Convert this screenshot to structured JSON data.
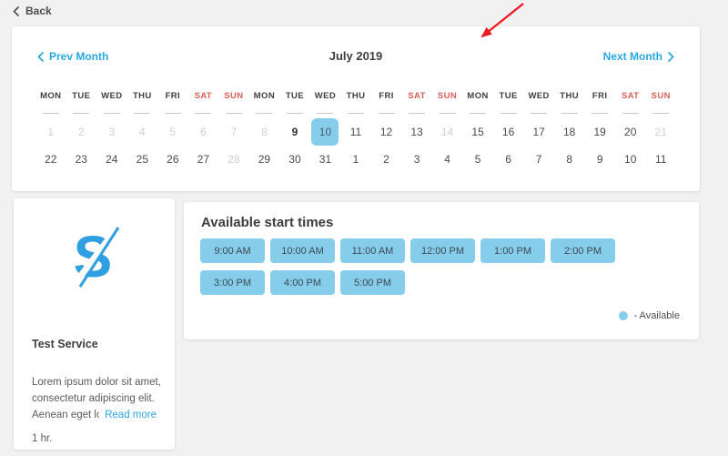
{
  "colors": {
    "accent": "#2ba7e0",
    "slot_blue": "#85cdea",
    "weekend_red": "#d66058",
    "arrow_red": "#ed1c24",
    "logo_blue": "#2e9fe0",
    "page_bg": "#f1f1f2"
  },
  "back": {
    "label": "Back"
  },
  "calendar": {
    "title": "July 2019",
    "prev_label": "Prev Month",
    "next_label": "Next Month",
    "day_headers": [
      {
        "label": "MON",
        "weekend": false
      },
      {
        "label": "TUE",
        "weekend": false
      },
      {
        "label": "WED",
        "weekend": false
      },
      {
        "label": "THU",
        "weekend": false
      },
      {
        "label": "FRI",
        "weekend": false
      },
      {
        "label": "SAT",
        "weekend": true
      },
      {
        "label": "SUN",
        "weekend": true
      },
      {
        "label": "MON",
        "weekend": false
      },
      {
        "label": "TUE",
        "weekend": false
      },
      {
        "label": "WED",
        "weekend": false
      },
      {
        "label": "THU",
        "weekend": false
      },
      {
        "label": "FRI",
        "weekend": false
      },
      {
        "label": "SAT",
        "weekend": true
      },
      {
        "label": "SUN",
        "weekend": true
      },
      {
        "label": "MON",
        "weekend": false
      },
      {
        "label": "TUE",
        "weekend": false
      },
      {
        "label": "WED",
        "weekend": false
      },
      {
        "label": "THU",
        "weekend": false
      },
      {
        "label": "FRI",
        "weekend": false
      },
      {
        "label": "SAT",
        "weekend": true
      },
      {
        "label": "SUN",
        "weekend": true
      }
    ],
    "rows": [
      [
        {
          "day": "1",
          "state": "disabled"
        },
        {
          "day": "2",
          "state": "disabled"
        },
        {
          "day": "3",
          "state": "disabled"
        },
        {
          "day": "4",
          "state": "disabled"
        },
        {
          "day": "5",
          "state": "disabled"
        },
        {
          "day": "6",
          "state": "disabled"
        },
        {
          "day": "7",
          "state": "disabled"
        },
        {
          "day": "8",
          "state": "disabled"
        },
        {
          "day": "9",
          "state": "today"
        },
        {
          "day": "10",
          "state": "selected"
        },
        {
          "day": "11",
          "state": "normal"
        },
        {
          "day": "12",
          "state": "normal"
        },
        {
          "day": "13",
          "state": "normal"
        },
        {
          "day": "14",
          "state": "disabled"
        },
        {
          "day": "15",
          "state": "normal"
        },
        {
          "day": "16",
          "state": "normal"
        },
        {
          "day": "17",
          "state": "normal"
        },
        {
          "day": "18",
          "state": "normal"
        },
        {
          "day": "19",
          "state": "normal"
        },
        {
          "day": "20",
          "state": "normal"
        },
        {
          "day": "21",
          "state": "disabled"
        }
      ],
      [
        {
          "day": "22",
          "state": "normal"
        },
        {
          "day": "23",
          "state": "normal"
        },
        {
          "day": "24",
          "state": "normal"
        },
        {
          "day": "25",
          "state": "normal"
        },
        {
          "day": "26",
          "state": "normal"
        },
        {
          "day": "27",
          "state": "normal"
        },
        {
          "day": "28",
          "state": "disabled"
        },
        {
          "day": "29",
          "state": "normal"
        },
        {
          "day": "30",
          "state": "normal"
        },
        {
          "day": "31",
          "state": "normal"
        },
        {
          "day": "1",
          "state": "normal"
        },
        {
          "day": "2",
          "state": "normal"
        },
        {
          "day": "3",
          "state": "normal"
        },
        {
          "day": "4",
          "state": "normal"
        },
        {
          "day": "5",
          "state": "normal"
        },
        {
          "day": "6",
          "state": "normal"
        },
        {
          "day": "7",
          "state": "normal"
        },
        {
          "day": "8",
          "state": "normal"
        },
        {
          "day": "9",
          "state": "normal"
        },
        {
          "day": "10",
          "state": "normal"
        },
        {
          "day": "11",
          "state": "normal"
        }
      ]
    ]
  },
  "service": {
    "logo_letter": "S",
    "name": "Test Service",
    "desc_lines": [
      "Lorem ipsum dolor sit amet,",
      "consectetur adipiscing elit.",
      "Aenean eget lorem"
    ],
    "read_more_label": "Read more",
    "duration": "1 hr."
  },
  "times": {
    "title": "Available start times",
    "slots": [
      "9:00 AM",
      "10:00 AM",
      "11:00 AM",
      "12:00 PM",
      "1:00 PM",
      "2:00 PM",
      "3:00 PM",
      "4:00 PM",
      "5:00 PM"
    ],
    "legend_label": "- Available"
  }
}
